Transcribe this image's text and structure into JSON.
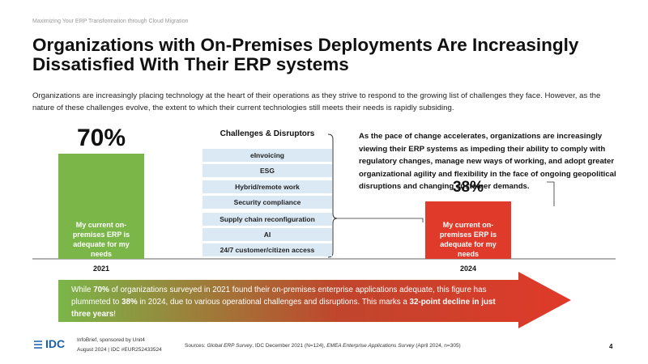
{
  "header": "Maximizing Your ERP Transformation through Cloud Migration",
  "title": "Organizations with On-Premises Deployments Are Increasingly Dissatisfied With Their ERP systems",
  "intro": "Organizations are increasingly placing technology at the heart of their operations as they strive to respond to the growing list of challenges they face. However, as the nature of these challenges evolve, the extent to which their current technologies still meets their needs is rapidly subsiding.",
  "bars": [
    {
      "value": 70,
      "label": "70%",
      "text": "My current on-premises ERP is adequate for my needs",
      "year": "2021",
      "color": "#7ab648"
    },
    {
      "value": 38,
      "label": "38%",
      "text": "My current on-premises ERP is adequate for my needs",
      "year": "2024",
      "color": "#e03a2a"
    }
  ],
  "challenges": {
    "title": "Challenges & Disruptors",
    "items": [
      "eInvoicing",
      "ESG",
      "Hybrid/remote work",
      "Security compliance",
      "Supply chain reconfiguration",
      "AI",
      "24/7 customer/citizen access"
    ]
  },
  "callout": "As the pace of change accelerates, organizations are increasingly viewing their ERP systems as impeding their ability to comply with regulatory changes, manage new ways of working, and adopt greater organizational agility and flexibility in the face of ongoing geopolitical disruptions and changing customer demands.",
  "arrow_text": [
    {
      "text": "While ",
      "bold": false
    },
    {
      "text": "70%",
      "bold": true
    },
    {
      "text": " of organizations surveyed in 2021 found their on-premises enterprise applications adequate, this figure has plummeted to ",
      "bold": false
    },
    {
      "text": "38%",
      "bold": true
    },
    {
      "text": " in 2024, due to various operational challenges and disruptions. This marks a ",
      "bold": false
    },
    {
      "text": "32-point decline in just three years",
      "bold": true
    },
    {
      "text": "!",
      "bold": false
    }
  ],
  "footer": {
    "logo": "IDC",
    "line1": "InfoBrief, sponsored by Unit4",
    "line2": "August 2024 | IDC #EUR252433524",
    "sources": [
      {
        "text": "Sources: ",
        "italic": false
      },
      {
        "text": "Global ERP Survey",
        "italic": true
      },
      {
        "text": ", IDC December 2021 (N=124), ",
        "italic": false
      },
      {
        "text": "EMEA Enterprise Applications Survey",
        "italic": true
      },
      {
        "text": " (April 2024, n=305)",
        "italic": false
      }
    ],
    "page": "4"
  }
}
